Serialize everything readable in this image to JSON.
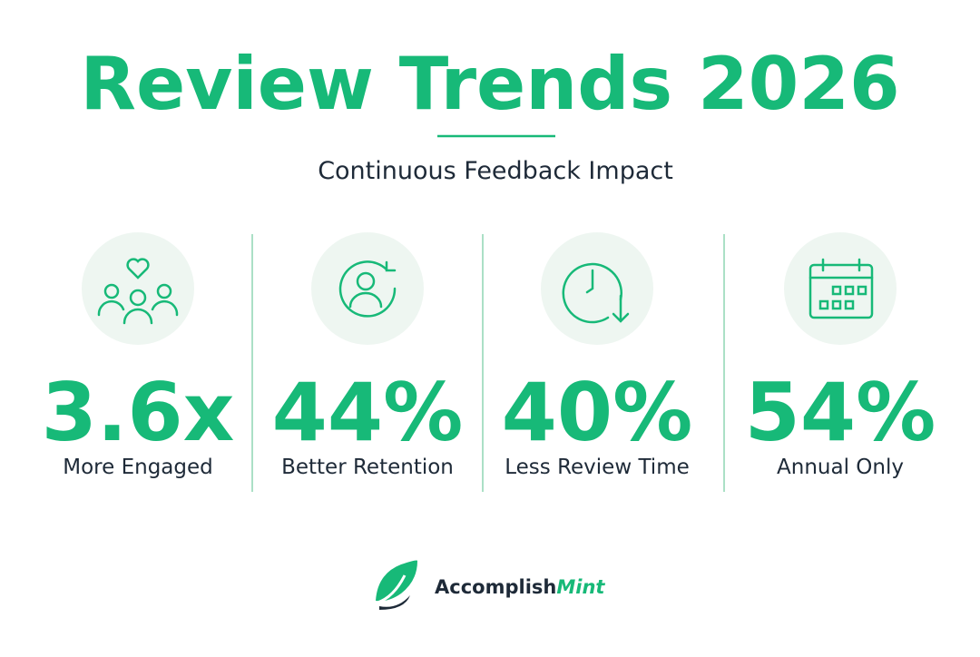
{
  "header": {
    "title": "Review Trends 2026",
    "subtitle": "Continuous Feedback Impact"
  },
  "stats": [
    {
      "value": "3.6x",
      "label": "More Engaged"
    },
    {
      "value": "44%",
      "label": "Better Retention"
    },
    {
      "value": "40%",
      "label": "Less Review Time"
    },
    {
      "value": "54%",
      "label": "Annual Only"
    }
  ],
  "brand": {
    "name_start": "Accomplish",
    "name_end": "Mint"
  }
}
